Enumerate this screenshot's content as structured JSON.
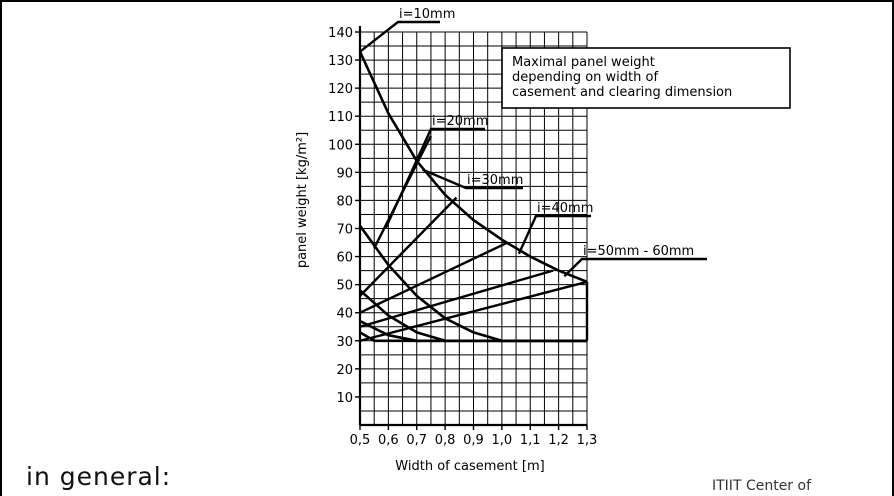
{
  "page": {
    "caption": "in general:",
    "footer_text": "ITIIT Center of"
  },
  "chart_data": {
    "type": "line",
    "xlabel": "Width of casement [m]",
    "ylabel": "panel weight [kg/m²]",
    "xlim": [
      0.5,
      1.3
    ],
    "ylim": [
      0,
      140
    ],
    "x_ticks": [
      "0,5",
      "0,6",
      "0,7",
      "0,8",
      "0,9",
      "1,0",
      "1,1",
      "1,2",
      "1,3"
    ],
    "y_ticks": [
      "10",
      "20",
      "30",
      "40",
      "50",
      "60",
      "70",
      "80",
      "90",
      "100",
      "110",
      "120",
      "130",
      "140"
    ],
    "x_tick_values": [
      0.5,
      0.6,
      0.7,
      0.8,
      0.9,
      1.0,
      1.1,
      1.2,
      1.3
    ],
    "y_tick_values": [
      10,
      20,
      30,
      40,
      50,
      60,
      70,
      80,
      90,
      100,
      110,
      120,
      130,
      140
    ],
    "grid": true,
    "legend_box": {
      "lines": [
        "Maximal panel weight",
        "depending on width of",
        "casement and clearing dimension"
      ]
    },
    "series": [
      {
        "name": "i=10mm",
        "values": [
          [
            0.5,
            133
          ],
          [
            0.6,
            111
          ],
          [
            0.7,
            94
          ],
          [
            0.8,
            82
          ],
          [
            0.9,
            73
          ],
          [
            1.0,
            66
          ],
          [
            1.1,
            60
          ],
          [
            1.2,
            55
          ],
          [
            1.3,
            51
          ]
        ]
      },
      {
        "name": "i=20mm",
        "values": [
          [
            0.5,
            71
          ],
          [
            0.6,
            57
          ],
          [
            0.7,
            46
          ],
          [
            0.8,
            38
          ],
          [
            0.9,
            33
          ],
          [
            1.0,
            30
          ],
          [
            1.3,
            30
          ]
        ]
      },
      {
        "name": "i=30mm",
        "values": [
          [
            0.5,
            48
          ],
          [
            0.6,
            39
          ],
          [
            0.7,
            33
          ],
          [
            0.8,
            30
          ],
          [
            1.3,
            30
          ]
        ]
      },
      {
        "name": "i=40mm",
        "values": [
          [
            0.5,
            37
          ],
          [
            0.6,
            32
          ],
          [
            0.7,
            30
          ],
          [
            1.3,
            30
          ]
        ]
      },
      {
        "name": "i=50mm - 60mm",
        "values": [
          [
            0.5,
            33
          ],
          [
            0.55,
            30
          ],
          [
            1.3,
            30
          ]
        ]
      }
    ],
    "limit_lines": [
      [
        [
          0.55,
          63
        ],
        [
          0.75,
          103
        ]
      ],
      [
        [
          0.5,
          46
        ],
        [
          0.84,
          81
        ]
      ],
      [
        [
          0.5,
          40
        ],
        [
          1.02,
          65
        ]
      ],
      [
        [
          0.5,
          35
        ],
        [
          1.18,
          55
        ]
      ],
      [
        [
          0.5,
          30
        ],
        [
          1.3,
          51
        ]
      ]
    ]
  }
}
